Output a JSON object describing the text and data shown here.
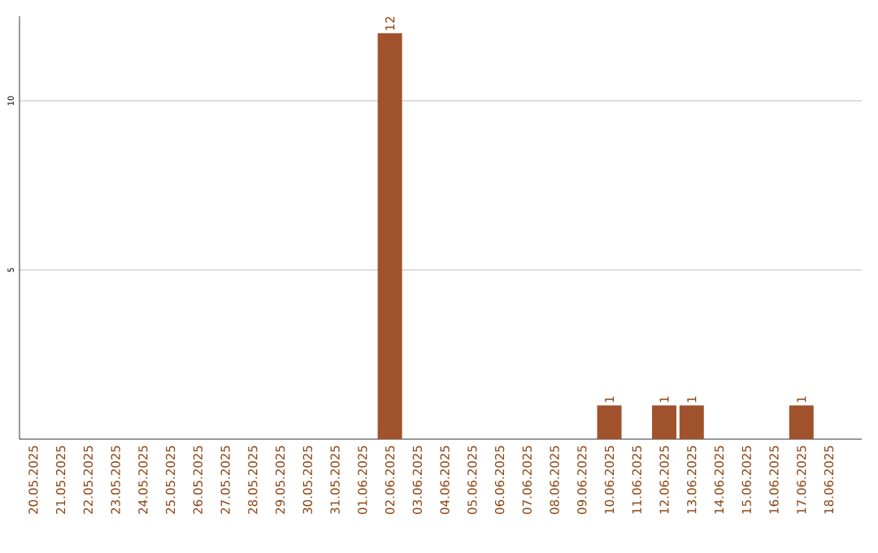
{
  "chart_data": {
    "type": "bar",
    "categories": [
      "20.05.2025",
      "21.05.2025",
      "22.05.2025",
      "23.05.2025",
      "24.05.2025",
      "25.05.2025",
      "26.05.2025",
      "27.05.2025",
      "28.05.2025",
      "29.05.2025",
      "30.05.2025",
      "31.05.2025",
      "01.06.2025",
      "02.06.2025",
      "03.06.2025",
      "04.06.2025",
      "05.06.2025",
      "06.06.2025",
      "07.06.2025",
      "08.06.2025",
      "09.06.2025",
      "10.06.2025",
      "11.06.2025",
      "12.06.2025",
      "13.06.2025",
      "14.06.2025",
      "15.06.2025",
      "16.06.2025",
      "17.06.2025",
      "18.06.2025"
    ],
    "values": [
      0,
      0,
      0,
      0,
      0,
      0,
      0,
      0,
      0,
      0,
      0,
      0,
      0,
      12,
      0,
      0,
      0,
      0,
      0,
      0,
      0,
      1,
      0,
      1,
      1,
      0,
      0,
      0,
      1,
      0
    ],
    "value_labels": [
      null,
      null,
      null,
      null,
      null,
      null,
      null,
      null,
      null,
      null,
      null,
      null,
      null,
      "12",
      null,
      null,
      null,
      null,
      null,
      null,
      null,
      "1",
      null,
      "1",
      "1",
      null,
      null,
      null,
      "1",
      null
    ],
    "color": "#a0522d",
    "ylim": [
      0,
      12.5
    ],
    "yticks": [
      5,
      10
    ],
    "grid": "y"
  }
}
